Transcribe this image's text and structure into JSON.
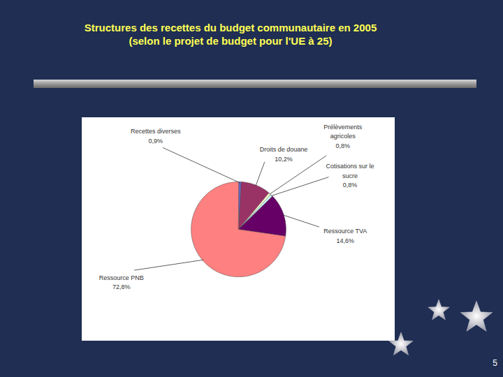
{
  "chart_data": {
    "type": "pie",
    "title": "Structures des recettes du budget communautaire en 2005",
    "subtitle": "(selon le projet de budget pour l'UE à 25)",
    "categories": [
      "Recettes diverses",
      "Droits de douane",
      "Prélèvements agricoles",
      "Cotisations sur le sucre",
      "Ressource TVA",
      "Ressource PNB"
    ],
    "values": [
      0.9,
      10.2,
      0.8,
      0.8,
      14.6,
      72.8
    ],
    "value_labels": [
      "0,9%",
      "10,2%",
      "0,8%",
      "0,8%",
      "14,6%",
      "72,8%"
    ],
    "colors": [
      "#6666cc",
      "#993366",
      "#ffffcc",
      "#ccffff",
      "#660066",
      "#ff8080"
    ],
    "data_labels": true
  },
  "page_number": "5"
}
